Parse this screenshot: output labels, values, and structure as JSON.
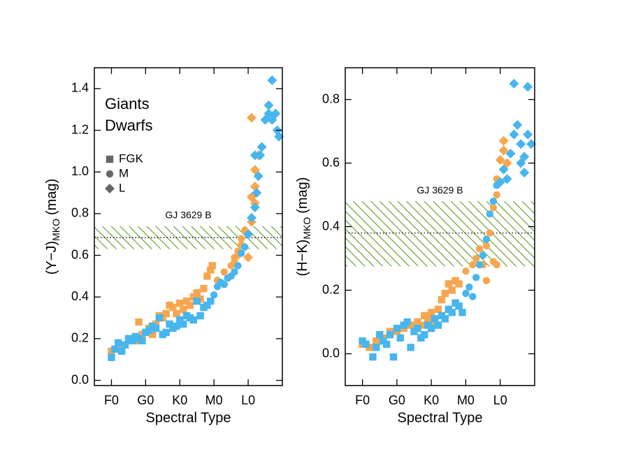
{
  "chart_data": [
    {
      "type": "scatter",
      "xlabel": "Spectral Type",
      "ylabel": "(Y−J)",
      "ylabel_sub": "MKO",
      "ylabel_unit": "(mag)",
      "xlim": [
        -5,
        50
      ],
      "ylim": [
        -0.025,
        1.5
      ],
      "xticks": [
        {
          "value": 0,
          "label": "F0"
        },
        {
          "value": 10,
          "label": "G0"
        },
        {
          "value": 20,
          "label": "K0"
        },
        {
          "value": 30,
          "label": "M0"
        },
        {
          "value": 40,
          "label": "L0"
        }
      ],
      "yticks": [
        {
          "value": 0,
          "label": "0.0"
        },
        0.2,
        0.4,
        0.6,
        0.8,
        {
          "value": 1,
          "label": "1.0"
        },
        1.2,
        1.4
      ],
      "legend": "upper left",
      "marker_classes": [
        {
          "label": "FGK",
          "shape": "square",
          "from": 0
        },
        {
          "label": "M",
          "shape": "circle",
          "from": 30
        },
        {
          "label": "L",
          "shape": "diamond",
          "from": 40
        }
      ],
      "band": {
        "label": "GJ 3629 B",
        "range": [
          0.63,
          0.74
        ],
        "value": 0.685,
        "color": "#5b9b1d"
      },
      "series": [
        {
          "name": "Giants",
          "color": "#f7a650",
          "x": [
            0,
            3,
            7,
            9,
            8,
            11,
            12,
            13,
            14,
            15,
            16,
            17,
            18,
            19,
            20,
            21,
            22,
            23,
            24,
            25,
            26,
            27,
            28,
            29,
            31,
            29.5,
            33,
            35,
            36,
            36,
            37,
            38,
            39,
            37,
            38,
            40,
            41,
            41,
            42,
            42,
            43,
            41,
            42
          ],
          "values": [
            0.14,
            0.16,
            0.19,
            0.22,
            0.28,
            0.25,
            0.22,
            0.27,
            0.31,
            0.3,
            0.32,
            0.36,
            0.35,
            0.32,
            0.37,
            0.34,
            0.38,
            0.36,
            0.4,
            0.42,
            0.39,
            0.44,
            0.5,
            0.53,
            0.48,
            0.55,
            0.52,
            0.55,
            0.57,
            0.59,
            0.62,
            0.65,
            0.72,
            0.6,
            0.68,
            0.59,
            0.76,
            0.88,
            0.93,
            1.01,
            1.08,
            1.26,
            0.85
          ]
        },
        {
          "name": "Dwarfs",
          "color": "#47b5ee",
          "x": [
            0,
            1,
            2,
            3,
            4,
            5,
            6,
            7,
            8,
            9,
            10,
            11,
            12,
            13,
            14,
            15,
            16,
            17,
            18,
            19,
            20,
            21,
            22,
            23,
            24,
            25,
            26,
            27,
            28,
            29,
            30,
            31,
            32,
            33,
            34,
            35,
            36,
            37,
            38,
            39,
            40,
            41,
            42,
            42.5,
            43,
            42,
            43.5,
            44,
            45,
            46,
            46,
            47,
            47,
            48,
            48.5,
            49
          ],
          "values": [
            0.11,
            0.15,
            0.18,
            0.14,
            0.17,
            0.2,
            0.19,
            0.21,
            0.2,
            0.19,
            0.23,
            0.24,
            0.26,
            0.25,
            0.3,
            0.22,
            0.23,
            0.27,
            0.25,
            0.26,
            0.29,
            0.27,
            0.31,
            0.3,
            0.29,
            0.38,
            0.31,
            0.35,
            0.36,
            0.38,
            0.41,
            0.45,
            0.47,
            0.46,
            0.49,
            0.5,
            0.52,
            0.55,
            0.61,
            0.64,
            0.7,
            0.78,
            0.83,
            0.9,
            0.98,
            1.08,
            1.08,
            1.12,
            1.25,
            1.32,
            1.28,
            1.25,
            1.44,
            1.28,
            1.2,
            1.17
          ]
        }
      ]
    },
    {
      "type": "scatter",
      "xlabel": "Spectral Type",
      "ylabel": "(H−K)",
      "ylabel_sub": "MKO",
      "ylabel_unit": "(mag)",
      "xlim": [
        -5,
        50
      ],
      "ylim": [
        -0.1,
        0.9
      ],
      "xticks": [
        {
          "value": 0,
          "label": "F0"
        },
        {
          "value": 10,
          "label": "G0"
        },
        {
          "value": 20,
          "label": "K0"
        },
        {
          "value": 30,
          "label": "M0"
        },
        {
          "value": 40,
          "label": "L0"
        }
      ],
      "yticks": [
        {
          "value": 0,
          "label": "0.0"
        },
        0.2,
        0.4,
        0.6,
        0.8
      ],
      "band": {
        "label": "GJ 3629 B",
        "range": [
          0.275,
          0.48
        ],
        "value": 0.38,
        "color": "#5b9b1d"
      },
      "series": [
        {
          "color": "#f7a650",
          "x": [
            0,
            2,
            4,
            6,
            8,
            10,
            12,
            14,
            16,
            17,
            18,
            19,
            20,
            21,
            22,
            23,
            24,
            25,
            26,
            27,
            28,
            30,
            32,
            33,
            34,
            35,
            36,
            37,
            38,
            39,
            39,
            40,
            41,
            41,
            42,
            38,
            36,
            39
          ],
          "values": [
            0.03,
            0.02,
            0.04,
            0.05,
            0.07,
            0.07,
            0.08,
            0.09,
            0.1,
            0.09,
            0.12,
            0.11,
            0.13,
            0.1,
            0.14,
            0.17,
            0.19,
            0.22,
            0.2,
            0.23,
            0.22,
            0.26,
            0.28,
            0.3,
            0.33,
            0.28,
            0.34,
            0.38,
            0.46,
            0.5,
            0.55,
            0.61,
            0.64,
            0.67,
            0.6,
            0.29,
            0.23,
            0.28
          ]
        },
        {
          "color": "#47b5ee",
          "x": [
            0,
            1,
            3,
            4,
            5,
            6,
            7,
            8,
            9,
            10,
            11,
            12,
            13,
            14,
            15,
            16,
            17,
            18,
            19,
            20,
            21,
            22,
            23,
            24,
            25,
            26,
            27,
            28,
            29,
            30,
            31,
            32,
            33,
            34,
            35,
            36,
            37,
            38,
            39,
            40,
            41,
            42,
            43,
            44,
            45,
            46,
            46,
            47,
            47,
            48,
            49,
            44,
            48
          ],
          "values": [
            0.04,
            0.03,
            -0.01,
            0.02,
            0.06,
            0.04,
            0.03,
            0.06,
            -0.01,
            0.08,
            0.05,
            0.09,
            0.1,
            0.02,
            0.07,
            0.08,
            0.05,
            0.06,
            0.09,
            0.08,
            0.11,
            0.09,
            0.12,
            0.11,
            0.14,
            0.13,
            0.16,
            0.15,
            0.13,
            0.19,
            0.21,
            0.18,
            0.24,
            0.28,
            0.31,
            0.36,
            0.44,
            0.48,
            0.53,
            0.54,
            0.58,
            0.55,
            0.63,
            0.69,
            0.72,
            0.66,
            0.6,
            0.57,
            0.62,
            0.69,
            0.66,
            0.85,
            0.84
          ]
        }
      ]
    }
  ]
}
